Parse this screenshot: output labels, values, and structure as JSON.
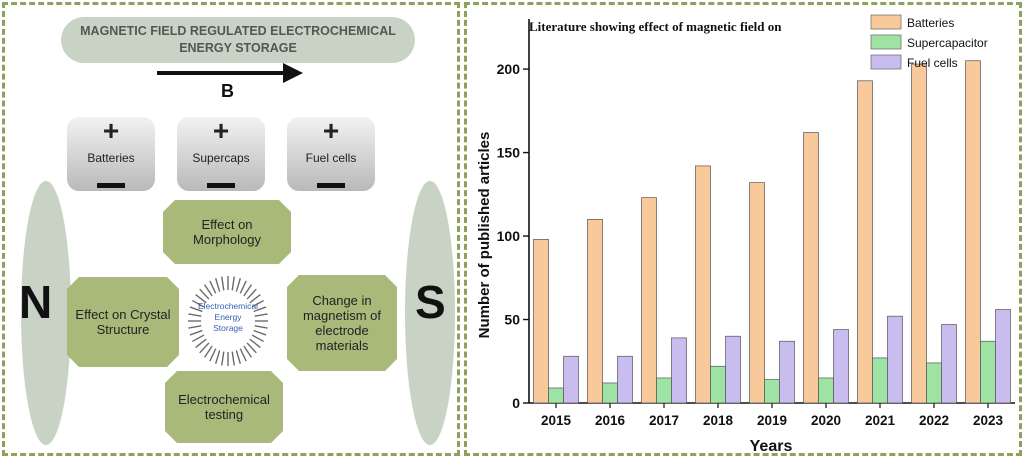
{
  "diagram": {
    "banner": [
      "MAGNETIC FIELD REGULATED ELECTROCHEMICAL",
      "ENERGY STORAGE"
    ],
    "field_label": "B",
    "cells": [
      {
        "label": "Batteries",
        "positive": "+"
      },
      {
        "label": "Supercaps",
        "positive": "+"
      },
      {
        "label": "Fuel cells",
        "positive": "+"
      }
    ],
    "pole_north": "N",
    "pole_south": "S",
    "center": [
      "Electrochemical",
      "Energy",
      "Storage"
    ],
    "effects": {
      "morphology": "Effect on Morphology",
      "crystal": "Effect on Crystal Structure",
      "magnetism": "Change in magnetism of electrode materials",
      "testing": "Electrochemical testing"
    }
  },
  "chart_data": {
    "type": "bar",
    "title": "Literature showing effect of magnetic field on",
    "xlabel": "Years",
    "ylabel": "Number of published articles",
    "ylim": [
      0,
      230
    ],
    "yticks": [
      0,
      50,
      100,
      150,
      200
    ],
    "categories": [
      "2015",
      "2016",
      "2017",
      "2018",
      "2019",
      "2020",
      "2021",
      "2022",
      "2023"
    ],
    "legend_position": "top-right",
    "series": [
      {
        "name": "Batteries",
        "color": "#f8c99a",
        "values": [
          98,
          110,
          123,
          142,
          132,
          162,
          193,
          203,
          205
        ]
      },
      {
        "name": "Supercapacitor",
        "color": "#9ee3a4",
        "values": [
          9,
          12,
          15,
          22,
          14,
          15,
          27,
          24,
          37
        ]
      },
      {
        "name": "Fuel cells",
        "color": "#c9bdf0",
        "values": [
          28,
          28,
          39,
          40,
          37,
          44,
          52,
          47,
          56
        ]
      }
    ]
  }
}
